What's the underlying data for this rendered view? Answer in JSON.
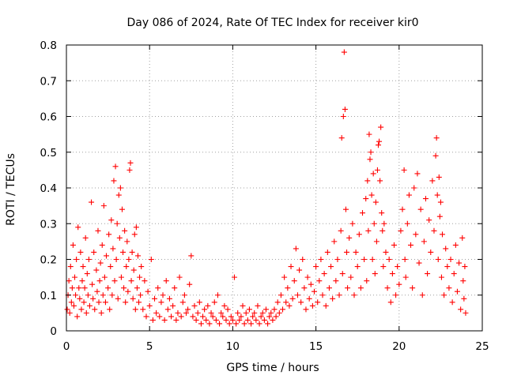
{
  "chart_data": {
    "type": "scatter",
    "title": "Day 086 of 2024, Rate Of TEC Index for receiver kir0",
    "xlabel": "GPS time / hours",
    "ylabel": "ROTI / TECUs",
    "xlim": [
      0,
      25
    ],
    "ylim": [
      0,
      0.8
    ],
    "xticks": [
      0,
      5,
      10,
      15,
      20,
      25
    ],
    "yticks": [
      0,
      0.1,
      0.2,
      0.3,
      0.4,
      0.5,
      0.6,
      0.7,
      0.8
    ],
    "xtick_labels": [
      "0",
      "5",
      "10",
      "15",
      "20",
      "25"
    ],
    "ytick_labels": [
      "0",
      "0.1",
      "0.2",
      "0.3",
      "0.4",
      "0.5",
      "0.6",
      "0.7",
      "0.8"
    ],
    "grid": true,
    "marker": "+",
    "color": "#ff0000",
    "series": [
      {
        "name": "kir0",
        "points": [
          [
            0.05,
            0.06
          ],
          [
            0.1,
            0.1
          ],
          [
            0.15,
            0.14
          ],
          [
            0.2,
            0.05
          ],
          [
            0.25,
            0.18
          ],
          [
            0.3,
            0.08
          ],
          [
            0.35,
            0.12
          ],
          [
            0.4,
            0.24
          ],
          [
            0.45,
            0.07
          ],
          [
            0.5,
            0.15
          ],
          [
            0.55,
            0.1
          ],
          [
            0.6,
            0.2
          ],
          [
            0.65,
            0.04
          ],
          [
            0.7,
            0.29
          ],
          [
            0.75,
            0.12
          ],
          [
            0.8,
            0.09
          ],
          [
            0.85,
            0.22
          ],
          [
            0.9,
            0.06
          ],
          [
            0.95,
            0.14
          ],
          [
            1.0,
            0.18
          ],
          [
            1.05,
            0.08
          ],
          [
            1.1,
            0.12
          ],
          [
            1.15,
            0.26
          ],
          [
            1.2,
            0.05
          ],
          [
            1.25,
            0.16
          ],
          [
            1.3,
            0.1
          ],
          [
            1.35,
            0.2
          ],
          [
            1.4,
            0.07
          ],
          [
            1.5,
            0.36
          ],
          [
            1.55,
            0.13
          ],
          [
            1.6,
            0.09
          ],
          [
            1.65,
            0.22
          ],
          [
            1.7,
            0.06
          ],
          [
            1.8,
            0.17
          ],
          [
            1.85,
            0.11
          ],
          [
            1.9,
            0.28
          ],
          [
            1.95,
            0.08
          ],
          [
            2.0,
            0.14
          ],
          [
            2.05,
            0.19
          ],
          [
            2.1,
            0.05
          ],
          [
            2.15,
            0.24
          ],
          [
            2.2,
            0.1
          ],
          [
            2.25,
            0.35
          ],
          [
            2.3,
            0.15
          ],
          [
            2.35,
            0.08
          ],
          [
            2.4,
            0.21
          ],
          [
            2.5,
            0.12
          ],
          [
            2.55,
            0.27
          ],
          [
            2.6,
            0.06
          ],
          [
            2.65,
            0.18
          ],
          [
            2.7,
            0.31
          ],
          [
            2.75,
            0.1
          ],
          [
            2.8,
            0.23
          ],
          [
            2.85,
            0.42
          ],
          [
            2.9,
            0.14
          ],
          [
            2.95,
            0.46
          ],
          [
            3.0,
            0.2
          ],
          [
            3.05,
            0.3
          ],
          [
            3.1,
            0.09
          ],
          [
            3.15,
            0.38
          ],
          [
            3.2,
            0.26
          ],
          [
            3.25,
            0.4
          ],
          [
            3.3,
            0.15
          ],
          [
            3.35,
            0.34
          ],
          [
            3.4,
            0.22
          ],
          [
            3.45,
            0.12
          ],
          [
            3.5,
            0.28
          ],
          [
            3.55,
            0.08
          ],
          [
            3.6,
            0.18
          ],
          [
            3.65,
            0.25
          ],
          [
            3.7,
            0.11
          ],
          [
            3.75,
            0.2
          ],
          [
            3.8,
            0.45
          ],
          [
            3.85,
            0.47
          ],
          [
            3.9,
            0.14
          ],
          [
            3.95,
            0.22
          ],
          [
            4.0,
            0.09
          ],
          [
            4.05,
            0.17
          ],
          [
            4.1,
            0.27
          ],
          [
            4.15,
            0.06
          ],
          [
            4.2,
            0.29
          ],
          [
            4.25,
            0.12
          ],
          [
            4.3,
            0.21
          ],
          [
            4.35,
            0.08
          ],
          [
            4.4,
            0.15
          ],
          [
            4.45,
            0.1
          ],
          [
            4.5,
            0.18
          ],
          [
            4.6,
            0.06
          ],
          [
            4.7,
            0.14
          ],
          [
            4.8,
            0.04
          ],
          [
            4.9,
            0.11
          ],
          [
            5.0,
            0.07
          ],
          [
            5.1,
            0.2
          ],
          [
            5.2,
            0.03
          ],
          [
            5.3,
            0.09
          ],
          [
            5.4,
            0.05
          ],
          [
            5.5,
            0.12
          ],
          [
            5.6,
            0.04
          ],
          [
            5.7,
            0.08
          ],
          [
            5.8,
            0.1
          ],
          [
            5.9,
            0.03
          ],
          [
            6.0,
            0.14
          ],
          [
            6.1,
            0.06
          ],
          [
            6.2,
            0.09
          ],
          [
            6.3,
            0.04
          ],
          [
            6.4,
            0.07
          ],
          [
            6.5,
            0.12
          ],
          [
            6.6,
            0.03
          ],
          [
            6.7,
            0.05
          ],
          [
            6.8,
            0.15
          ],
          [
            6.9,
            0.04
          ],
          [
            7.0,
            0.08
          ],
          [
            7.1,
            0.1
          ],
          [
            7.2,
            0.05
          ],
          [
            7.3,
            0.06
          ],
          [
            7.4,
            0.13
          ],
          [
            7.5,
            0.21
          ],
          [
            7.6,
            0.04
          ],
          [
            7.7,
            0.07
          ],
          [
            7.8,
            0.03
          ],
          [
            7.9,
            0.05
          ],
          [
            8.0,
            0.08
          ],
          [
            8.1,
            0.02
          ],
          [
            8.2,
            0.04
          ],
          [
            8.3,
            0.06
          ],
          [
            8.4,
            0.03
          ],
          [
            8.5,
            0.07
          ],
          [
            8.6,
            0.02
          ],
          [
            8.7,
            0.05
          ],
          [
            8.8,
            0.04
          ],
          [
            8.9,
            0.08
          ],
          [
            9.0,
            0.03
          ],
          [
            9.1,
            0.1
          ],
          [
            9.2,
            0.02
          ],
          [
            9.3,
            0.05
          ],
          [
            9.4,
            0.04
          ],
          [
            9.5,
            0.07
          ],
          [
            9.6,
            0.03
          ],
          [
            9.7,
            0.06
          ],
          [
            9.8,
            0.02
          ],
          [
            9.9,
            0.04
          ],
          [
            10.0,
            0.03
          ],
          [
            10.1,
            0.15
          ],
          [
            10.2,
            0.02
          ],
          [
            10.3,
            0.05
          ],
          [
            10.4,
            0.03
          ],
          [
            10.5,
            0.04
          ],
          [
            10.6,
            0.07
          ],
          [
            10.7,
            0.02
          ],
          [
            10.8,
            0.05
          ],
          [
            10.9,
            0.03
          ],
          [
            11.0,
            0.06
          ],
          [
            11.1,
            0.02
          ],
          [
            11.2,
            0.04
          ],
          [
            11.3,
            0.05
          ],
          [
            11.4,
            0.03
          ],
          [
            11.5,
            0.07
          ],
          [
            11.6,
            0.02
          ],
          [
            11.7,
            0.04
          ],
          [
            11.8,
            0.05
          ],
          [
            11.9,
            0.03
          ],
          [
            12.0,
            0.06
          ],
          [
            12.1,
            0.02
          ],
          [
            12.2,
            0.04
          ],
          [
            12.3,
            0.05
          ],
          [
            12.4,
            0.03
          ],
          [
            12.5,
            0.06
          ],
          [
            12.6,
            0.04
          ],
          [
            12.7,
            0.08
          ],
          [
            12.8,
            0.05
          ],
          [
            12.9,
            0.1
          ],
          [
            13.0,
            0.06
          ],
          [
            13.1,
            0.15
          ],
          [
            13.2,
            0.08
          ],
          [
            13.3,
            0.12
          ],
          [
            13.4,
            0.07
          ],
          [
            13.5,
            0.18
          ],
          [
            13.6,
            0.09
          ],
          [
            13.7,
            0.14
          ],
          [
            13.8,
            0.23
          ],
          [
            13.9,
            0.1
          ],
          [
            14.0,
            0.17
          ],
          [
            14.1,
            0.08
          ],
          [
            14.2,
            0.2
          ],
          [
            14.3,
            0.12
          ],
          [
            14.4,
            0.06
          ],
          [
            14.5,
            0.15
          ],
          [
            14.6,
            0.09
          ],
          [
            14.7,
            0.13
          ],
          [
            14.8,
            0.07
          ],
          [
            14.9,
            0.11
          ],
          [
            15.0,
            0.18
          ],
          [
            15.1,
            0.08
          ],
          [
            15.2,
            0.14
          ],
          [
            15.3,
            0.2
          ],
          [
            15.4,
            0.1
          ],
          [
            15.5,
            0.16
          ],
          [
            15.6,
            0.07
          ],
          [
            15.7,
            0.22
          ],
          [
            15.8,
            0.12
          ],
          [
            15.9,
            0.18
          ],
          [
            16.0,
            0.09
          ],
          [
            16.1,
            0.25
          ],
          [
            16.2,
            0.14
          ],
          [
            16.3,
            0.2
          ],
          [
            16.4,
            0.1
          ],
          [
            16.5,
            0.28
          ],
          [
            16.55,
            0.54
          ],
          [
            16.6,
            0.16
          ],
          [
            16.65,
            0.6
          ],
          [
            16.7,
            0.78
          ],
          [
            16.75,
            0.62
          ],
          [
            16.8,
            0.34
          ],
          [
            16.85,
            0.22
          ],
          [
            16.9,
            0.12
          ],
          [
            17.0,
            0.26
          ],
          [
            17.1,
            0.15
          ],
          [
            17.2,
            0.3
          ],
          [
            17.3,
            0.1
          ],
          [
            17.4,
            0.22
          ],
          [
            17.5,
            0.18
          ],
          [
            17.6,
            0.27
          ],
          [
            17.7,
            0.12
          ],
          [
            17.8,
            0.33
          ],
          [
            17.9,
            0.2
          ],
          [
            18.0,
            0.37
          ],
          [
            18.05,
            0.14
          ],
          [
            18.1,
            0.42
          ],
          [
            18.15,
            0.28
          ],
          [
            18.2,
            0.55
          ],
          [
            18.25,
            0.48
          ],
          [
            18.3,
            0.5
          ],
          [
            18.35,
            0.38
          ],
          [
            18.4,
            0.2
          ],
          [
            18.45,
            0.44
          ],
          [
            18.5,
            0.3
          ],
          [
            18.55,
            0.16
          ],
          [
            18.6,
            0.36
          ],
          [
            18.65,
            0.25
          ],
          [
            18.7,
            0.45
          ],
          [
            18.75,
            0.52
          ],
          [
            18.8,
            0.53
          ],
          [
            18.85,
            0.42
          ],
          [
            18.9,
            0.57
          ],
          [
            18.95,
            0.33
          ],
          [
            19.0,
            0.28
          ],
          [
            19.05,
            0.18
          ],
          [
            19.1,
            0.3
          ],
          [
            19.2,
            0.22
          ],
          [
            19.3,
            0.12
          ],
          [
            19.4,
            0.2
          ],
          [
            19.5,
            0.08
          ],
          [
            19.6,
            0.16
          ],
          [
            19.7,
            0.24
          ],
          [
            19.8,
            0.1
          ],
          [
            19.9,
            0.18
          ],
          [
            20.0,
            0.13
          ],
          [
            20.1,
            0.28
          ],
          [
            20.2,
            0.34
          ],
          [
            20.3,
            0.45
          ],
          [
            20.35,
            0.2
          ],
          [
            20.4,
            0.15
          ],
          [
            20.5,
            0.3
          ],
          [
            20.6,
            0.38
          ],
          [
            20.7,
            0.24
          ],
          [
            20.8,
            0.12
          ],
          [
            20.9,
            0.4
          ],
          [
            21.0,
            0.27
          ],
          [
            21.1,
            0.44
          ],
          [
            21.2,
            0.19
          ],
          [
            21.3,
            0.34
          ],
          [
            21.4,
            0.1
          ],
          [
            21.5,
            0.25
          ],
          [
            21.6,
            0.37
          ],
          [
            21.7,
            0.16
          ],
          [
            21.8,
            0.31
          ],
          [
            21.9,
            0.22
          ],
          [
            22.0,
            0.42
          ],
          [
            22.1,
            0.28
          ],
          [
            22.2,
            0.49
          ],
          [
            22.25,
            0.54
          ],
          [
            22.3,
            0.38
          ],
          [
            22.35,
            0.2
          ],
          [
            22.4,
            0.43
          ],
          [
            22.45,
            0.32
          ],
          [
            22.5,
            0.36
          ],
          [
            22.55,
            0.15
          ],
          [
            22.6,
            0.27
          ],
          [
            22.7,
            0.1
          ],
          [
            22.8,
            0.23
          ],
          [
            22.9,
            0.18
          ],
          [
            23.0,
            0.12
          ],
          [
            23.1,
            0.2
          ],
          [
            23.2,
            0.08
          ],
          [
            23.3,
            0.16
          ],
          [
            23.4,
            0.24
          ],
          [
            23.5,
            0.11
          ],
          [
            23.6,
            0.19
          ],
          [
            23.7,
            0.06
          ],
          [
            23.8,
            0.26
          ],
          [
            23.85,
            0.14
          ],
          [
            23.9,
            0.09
          ],
          [
            23.95,
            0.18
          ],
          [
            24.0,
            0.05
          ]
        ]
      }
    ]
  }
}
